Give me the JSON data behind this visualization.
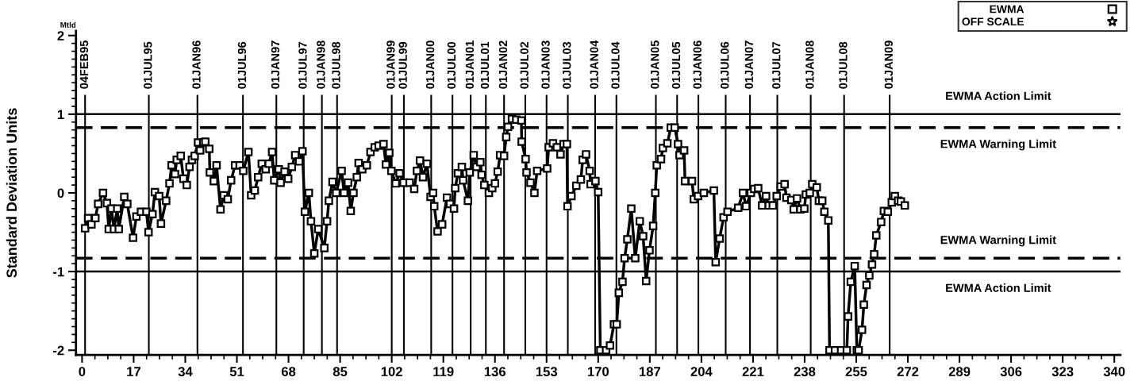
{
  "chart_data": {
    "type": "line",
    "ylabel": "Standard Deviation Units",
    "annotations": [
      "Mtld"
    ],
    "xlim": [
      -2,
      342
    ],
    "xticks": [
      0,
      17,
      34,
      51,
      68,
      85,
      102,
      119,
      136,
      153,
      170,
      187,
      204,
      221,
      238,
      255,
      272,
      289,
      306,
      323,
      340
    ],
    "ylim": [
      -2.06,
      2.06
    ],
    "yticks": [
      -2,
      -1,
      0,
      1,
      2
    ],
    "grid": false,
    "legend": "top right",
    "series": [
      {
        "name": "EWMA",
        "color": "#000000",
        "marker": "square",
        "line_style": "solid",
        "x": [
          1.0,
          2.0,
          3.1,
          4.4,
          5.3,
          6.9,
          8.2,
          8.8,
          9.7,
          10.5,
          11.6,
          12.1,
          13.9,
          14.9,
          16.8,
          17.9,
          19.4,
          21.2,
          21.9,
          23.2,
          24.0,
          25.4,
          26.0,
          27.7,
          28.8,
          29.5,
          30.6,
          31.2,
          32.5,
          33.4,
          34.5,
          35.4,
          36.2,
          37.1,
          38.2,
          38.9,
          39.9,
          40.6,
          41.9,
          42.1,
          43.4,
          44.3,
          45.6,
          46.7,
          48.0,
          49.1,
          50.4,
          51.9,
          53.1,
          54.8,
          55.7,
          56.9,
          58.0,
          59.2,
          60.5,
          61.5,
          62.6,
          63.3,
          64.8,
          65.4,
          66.7,
          67.9,
          69.1,
          70.2,
          71.5,
          72.6,
          73.4,
          74.7,
          75.4,
          76.5,
          77.8,
          79.8,
          80.7,
          81.3,
          82.5,
          83.7,
          85.5,
          86.3,
          87.6,
          88.5,
          89.4,
          90.5,
          91.1,
          92.3,
          93.8,
          95.0,
          96.4,
          97.7,
          99.3,
          100.1,
          101.2,
          101.9,
          103.3,
          104.6,
          105.9,
          107.9,
          109.4,
          110.3,
          111.3,
          112.3,
          113.6,
          114.8,
          115.6,
          116.0,
          117.1,
          118.6,
          120.2,
          121.2,
          122.5,
          122.9,
          123.8,
          125.1,
          125.5,
          127.1,
          127.7,
          129.0,
          129.9,
          131.2,
          131.6,
          132.5,
          134.0,
          135.1,
          136.0,
          136.9,
          137.7,
          139.0,
          139.7,
          140.3,
          141.6,
          143.0,
          144.7,
          144.8,
          146.1,
          146.4,
          147.7,
          149.0,
          149.9,
          153.2,
          153.7,
          155.1,
          156.4,
          157.6,
          158.6,
          159.7,
          159.9,
          161.2,
          162.8,
          164.3,
          164.9,
          166.0,
          167.2,
          167.5,
          169.1,
          170.0,
          170.7,
          172.6,
          173.9,
          175.2,
          176.1,
          176.8,
          178.0,
          178.7,
          179.6,
          180.9,
          182.2,
          183.7,
          184.8,
          185.8,
          186.9,
          188.1,
          188.8,
          189.3,
          190.7,
          191.3,
          192.8,
          193.9,
          195.2,
          196.3,
          196.8,
          198.3,
          198.6,
          200.9,
          201.5,
          202.9,
          204.8,
          208.1,
          208.7,
          210.0,
          211.3,
          212.6,
          216.1,
          217.7,
          218.7,
          220.3,
          221.4,
          222.7,
          224.0,
          225.3,
          226.2,
          227.5,
          228.8,
          230.1,
          231.4,
          232.0,
          233.6,
          234.4,
          235.5,
          236.6,
          237.9,
          238.4,
          239.7,
          240.5,
          242.0,
          242.7,
          243.8,
          244.5,
          245.8,
          246.2,
          248.0,
          250.0,
          251.9,
          252.3,
          253.2,
          254.5,
          255.2,
          255.8,
          256.9,
          257.5,
          258.4,
          259.3,
          260.2,
          260.9,
          261.6,
          263.2,
          264.1,
          265.4,
          266.7,
          267.7,
          268.8,
          269.7,
          271.0
        ],
        "values": [
          -0.45,
          -0.32,
          -0.4,
          -0.32,
          -0.14,
          0.0,
          -0.13,
          -0.46,
          -0.2,
          -0.46,
          -0.2,
          -0.46,
          -0.05,
          -0.14,
          -0.57,
          -0.3,
          -0.24,
          -0.24,
          -0.5,
          -0.27,
          0.01,
          -0.04,
          -0.39,
          -0.1,
          0.12,
          0.35,
          0.24,
          0.42,
          0.47,
          0.18,
          0.1,
          0.33,
          0.42,
          0.47,
          0.64,
          0.54,
          0.64,
          0.65,
          0.56,
          0.26,
          0.15,
          0.35,
          -0.21,
          -0.03,
          -0.08,
          0.16,
          0.35,
          0.35,
          0.28,
          0.52,
          -0.03,
          0.03,
          0.2,
          0.37,
          0.3,
          0.37,
          0.52,
          0.16,
          0.3,
          0.13,
          0.27,
          0.18,
          0.33,
          0.48,
          0.4,
          0.53,
          -0.24,
          0.0,
          -0.36,
          -0.77,
          -0.46,
          -0.7,
          -0.36,
          -0.1,
          0.14,
          0.0,
          0.28,
          0.0,
          0.13,
          -0.23,
          0.0,
          0.2,
          0.38,
          0.3,
          0.35,
          0.52,
          0.58,
          0.6,
          0.62,
          0.36,
          0.51,
          0.28,
          0.12,
          0.25,
          0.13,
          0.13,
          0.05,
          0.28,
          0.41,
          0.2,
          0.37,
          -0.05,
          0.0,
          -0.17,
          -0.49,
          -0.4,
          -0.06,
          -0.14,
          -0.2,
          0.06,
          0.25,
          0.33,
          0.16,
          -0.1,
          0.26,
          0.48,
          0.33,
          0.39,
          0.23,
          0.1,
          0.0,
          0.06,
          0.12,
          0.27,
          0.48,
          0.47,
          0.71,
          0.84,
          0.94,
          0.93,
          0.92,
          0.65,
          0.43,
          0.26,
          0.13,
          0.0,
          0.28,
          0.31,
          0.58,
          0.63,
          0.58,
          0.49,
          0.62,
          0.62,
          -0.17,
          -0.04,
          0.09,
          0.17,
          0.42,
          0.49,
          0.28,
          0.11,
          0.15,
          0.01,
          -2.0,
          -2.0,
          -1.94,
          -1.67,
          -1.67,
          -1.27,
          -1.13,
          -0.83,
          -0.59,
          -0.2,
          -0.83,
          -0.36,
          -0.55,
          -1.12,
          -0.73,
          -0.42,
          0.0,
          0.35,
          0.43,
          0.57,
          0.63,
          0.83,
          0.83,
          0.62,
          0.48,
          0.54,
          0.15,
          0.15,
          -0.08,
          -0.04,
          0.0,
          0.03,
          -0.88,
          -0.58,
          -0.31,
          -0.24,
          -0.19,
          0.0,
          -0.17,
          0.0,
          0.05,
          0.06,
          -0.16,
          -0.04,
          -0.16,
          -0.16,
          -0.04,
          0.08,
          0.11,
          -0.06,
          -0.09,
          -0.21,
          -0.07,
          -0.21,
          -0.2,
          -0.02,
          0.0,
          0.11,
          0.07,
          -0.1,
          -0.1,
          -0.24,
          -0.35,
          -2.0,
          -2.0,
          -2.0,
          -2.0,
          -1.57,
          -1.13,
          -0.93,
          -2.0,
          -2.0,
          -1.74,
          -1.42,
          -1.17,
          -1.05,
          -0.91,
          -0.78,
          -0.54,
          -0.37,
          -0.23,
          -0.24,
          -0.12,
          -0.04,
          -0.1,
          -0.11,
          -0.16
        ]
      },
      {
        "name": "OFF SCALE",
        "color": "#000000",
        "marker": "star",
        "line_style": "none"
      }
    ],
    "ref_lines": [
      {
        "axis": "y",
        "value": 1,
        "label": "EWMA Action Limit",
        "line_style": "solid",
        "color": "#000000"
      },
      {
        "axis": "y",
        "value": 0.83,
        "label": "EWMA Warning Limit",
        "line_style": "dashed",
        "color": "#000000"
      },
      {
        "axis": "y",
        "value": -0.83,
        "label": "EWMA Warning Limit",
        "line_style": "dashed",
        "color": "#000000"
      },
      {
        "axis": "y",
        "value": -1,
        "label": "EWMA Action Limit",
        "line_style": "solid",
        "color": "#000000"
      },
      {
        "axis": "x",
        "value": 1,
        "label": "04FEB95",
        "line_style": "solid",
        "color": "#000000"
      },
      {
        "axis": "x",
        "value": 22,
        "label": "01JUL95",
        "line_style": "solid",
        "color": "#000000"
      },
      {
        "axis": "x",
        "value": 38,
        "label": "01JAN96",
        "line_style": "solid",
        "color": "#000000"
      },
      {
        "axis": "x",
        "value": 53,
        "label": "01JUL96",
        "line_style": "solid",
        "color": "#000000"
      },
      {
        "axis": "x",
        "value": 64,
        "label": "01JAN97",
        "line_style": "solid",
        "color": "#000000"
      },
      {
        "axis": "x",
        "value": 73,
        "label": "01JUL97",
        "line_style": "solid",
        "color": "#000000"
      },
      {
        "axis": "x",
        "value": 79,
        "label": "01JAN98",
        "line_style": "solid",
        "color": "#000000"
      },
      {
        "axis": "x",
        "value": 84,
        "label": "01JUL98",
        "line_style": "solid",
        "color": "#000000"
      },
      {
        "axis": "x",
        "value": 102,
        "label": "01JAN99",
        "line_style": "solid",
        "color": "#000000"
      },
      {
        "axis": "x",
        "value": 106,
        "label": "01JUL99",
        "line_style": "solid",
        "color": "#000000"
      },
      {
        "axis": "x",
        "value": 115,
        "label": "01JAN00",
        "line_style": "solid",
        "color": "#000000"
      },
      {
        "axis": "x",
        "value": 122,
        "label": "01JUL00",
        "line_style": "solid",
        "color": "#000000"
      },
      {
        "axis": "x",
        "value": 128,
        "label": "01JAN01",
        "line_style": "solid",
        "color": "#000000"
      },
      {
        "axis": "x",
        "value": 133,
        "label": "01JUL01",
        "line_style": "solid",
        "color": "#000000"
      },
      {
        "axis": "x",
        "value": 139,
        "label": "01JAN02",
        "line_style": "solid",
        "color": "#000000"
      },
      {
        "axis": "x",
        "value": 146,
        "label": "01JUL02",
        "line_style": "solid",
        "color": "#000000"
      },
      {
        "axis": "x",
        "value": 153,
        "label": "01JAN03",
        "line_style": "solid",
        "color": "#000000"
      },
      {
        "axis": "x",
        "value": 160,
        "label": "01JUL03",
        "line_style": "solid",
        "color": "#000000"
      },
      {
        "axis": "x",
        "value": 169,
        "label": "01JAN04",
        "line_style": "solid",
        "color": "#000000"
      },
      {
        "axis": "x",
        "value": 176,
        "label": "01JUL04",
        "line_style": "solid",
        "color": "#000000"
      },
      {
        "axis": "x",
        "value": 189,
        "label": "01JAN05",
        "line_style": "solid",
        "color": "#000000"
      },
      {
        "axis": "x",
        "value": 196,
        "label": "01JUL05",
        "line_style": "solid",
        "color": "#000000"
      },
      {
        "axis": "x",
        "value": 203,
        "label": "01JAN06",
        "line_style": "solid",
        "color": "#000000"
      },
      {
        "axis": "x",
        "value": 212,
        "label": "01JUL06",
        "line_style": "solid",
        "color": "#000000"
      },
      {
        "axis": "x",
        "value": 220,
        "label": "01JAN07",
        "line_style": "solid",
        "color": "#000000"
      },
      {
        "axis": "x",
        "value": 229,
        "label": "01JUL07",
        "line_style": "solid",
        "color": "#000000"
      },
      {
        "axis": "x",
        "value": 240,
        "label": "01JAN08",
        "line_style": "solid",
        "color": "#000000"
      },
      {
        "axis": "x",
        "value": 251,
        "label": "01JUL08",
        "line_style": "solid",
        "color": "#000000"
      },
      {
        "axis": "x",
        "value": 266,
        "label": "01JAN09",
        "line_style": "solid",
        "color": "#000000"
      }
    ]
  }
}
